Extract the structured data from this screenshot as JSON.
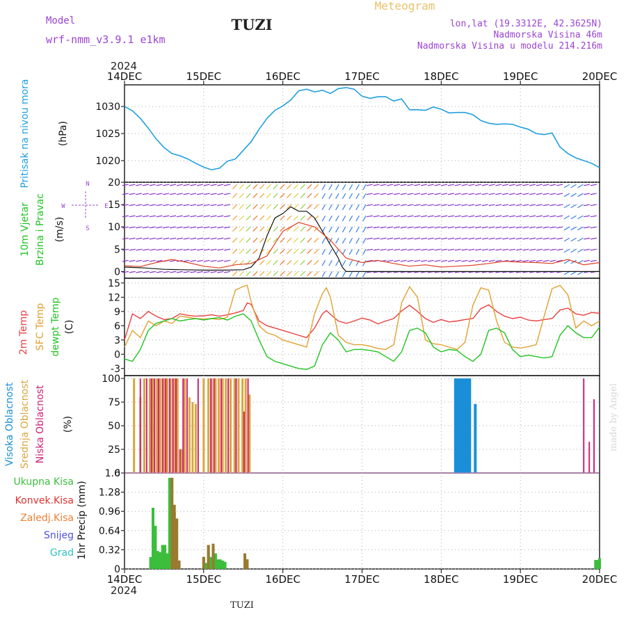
{
  "header": {
    "model_label": "Model",
    "model_name": "wrf-nmm_v3.9.1 e1km",
    "station": "TUZI",
    "product": "Meteogram",
    "lonlat": "lon,lat (19.3312E, 42.3625N)",
    "elevation": "Nadmorska Visina 46m",
    "model_elevation": "Nadmorska Visina u modelu 214.216m"
  },
  "footer": {
    "station": "TUZI",
    "year": "2024",
    "credit": "made by Angel"
  },
  "colors": {
    "pressure": "#1f9fe0",
    "t2m": "#e84040",
    "sfc": "#e0a030",
    "dewpt": "#22c322",
    "high_cloud": "#1a8fd8",
    "mid_cloud": "#d9a640",
    "low_cloud": "#cc2277",
    "total_precip": "#3cbd3c",
    "conv_precip": "#e03030",
    "frz_precip": "#f07f30",
    "snow": "#5050e0",
    "grad": "#30c0c0",
    "wind_purple": "#8833cc",
    "wind_blue": "#3b7fe0"
  },
  "chart_data": [
    {
      "type": "line",
      "id": "pressure",
      "ylabel_main": "Pritisak na nivou mora",
      "ylabel_unit": "(hPa)",
      "xticks": [
        "14DEC",
        "15DEC",
        "16DEC",
        "17DEC",
        "18DEC",
        "19DEC",
        "20DEC"
      ],
      "ylim": [
        1016,
        1034
      ],
      "yticks": [
        1020,
        1025,
        1030
      ],
      "grid": true,
      "series": [
        {
          "x": [
            0,
            0.1,
            0.2,
            0.3,
            0.4,
            0.5,
            0.6,
            0.7,
            0.8,
            0.9,
            1.0,
            1.1,
            1.2,
            1.3,
            1.4,
            1.5,
            1.6,
            1.7,
            1.8,
            1.9,
            2.0,
            2.1,
            2.2,
            2.3,
            2.4,
            2.5,
            2.6,
            2.7,
            2.8,
            2.9,
            3.0,
            3.1,
            3.2,
            3.3,
            3.4,
            3.5,
            3.6,
            3.7,
            3.8,
            3.9,
            4.0,
            4.1,
            4.2,
            4.3,
            4.4,
            4.5,
            4.6,
            4.7,
            4.8,
            4.9,
            5.0,
            5.1,
            5.2,
            5.3,
            5.4,
            5.5,
            5.6,
            5.7,
            5.8,
            5.9,
            6.0
          ],
          "y": [
            1030,
            1029.2,
            1027.8,
            1026,
            1024,
            1022.4,
            1021.3,
            1020.9,
            1020.3,
            1019.5,
            1018.8,
            1018.3,
            1018.6,
            1019.9,
            1020.3,
            1021.9,
            1023.5,
            1025.8,
            1027.8,
            1029.3,
            1030.1,
            1031.2,
            1032.9,
            1033.2,
            1032.7,
            1033,
            1032.4,
            1033.3,
            1033.5,
            1033.2,
            1031.9,
            1031.5,
            1031.8,
            1031.8,
            1031,
            1031.4,
            1029.4,
            1029.4,
            1029.3,
            1029.9,
            1029.5,
            1028.8,
            1028.9,
            1028.9,
            1028.5,
            1027.4,
            1026.9,
            1026.7,
            1026.8,
            1026.7,
            1026.2,
            1025.8,
            1025,
            1024.8,
            1025.1,
            1022.5,
            1021.3,
            1020.5,
            1020,
            1019.5,
            1018.7
          ]
        }
      ]
    },
    {
      "type": "line",
      "id": "wind",
      "ylabel_main": "10m Vjetar",
      "ylabel_sub": "Brzina i Pravac",
      "ylabel_unit": "(m/s)",
      "compass": {
        "w": "W",
        "e": "E",
        "n": "N",
        "s": "S"
      },
      "ylim": [
        -1.5,
        20
      ],
      "yticks": [
        0,
        5,
        10,
        15,
        20
      ],
      "grid": true,
      "series": [
        {
          "name": "speed",
          "x": [
            0,
            0.25,
            0.5,
            0.75,
            1.0,
            1.25,
            1.5,
            1.6,
            1.7,
            1.8,
            1.9,
            2.0,
            2.1,
            2.2,
            2.3,
            2.4,
            2.5,
            2.6,
            2.7,
            2.75,
            2.8,
            3.0,
            3.25,
            3.5,
            3.75,
            4.0,
            4.25,
            4.5,
            4.75,
            5.0,
            5.25,
            5.5,
            5.75,
            6.0
          ],
          "y": [
            1,
            0.8,
            0.5,
            0.4,
            0.3,
            0.3,
            0.4,
            1,
            3,
            8,
            12,
            13,
            14.5,
            13.5,
            13.5,
            12,
            9,
            6,
            3,
            1,
            0,
            0,
            0,
            0,
            0,
            0,
            0,
            0,
            0,
            0,
            0,
            0,
            0,
            0
          ]
        },
        {
          "name": "gust",
          "x": [
            0,
            0.2,
            0.4,
            0.6,
            0.8,
            1.0,
            1.2,
            1.4,
            1.6,
            1.8,
            2.0,
            2.2,
            2.4,
            2.6,
            2.8,
            3.0,
            3.2,
            3.4,
            3.6,
            3.8,
            4.0,
            4.2,
            4.4,
            4.6,
            4.8,
            5.0,
            5.2,
            5.4,
            5.6,
            5.8,
            6.0
          ],
          "y": [
            1.3,
            1.1,
            2,
            2.7,
            2,
            1.2,
            0.8,
            1.5,
            1.8,
            3.5,
            9,
            11,
            10,
            7,
            3,
            2,
            2.5,
            1.8,
            1.2,
            1.5,
            1,
            1.2,
            1.4,
            1.8,
            2.3,
            2.1,
            2,
            1.8,
            2.7,
            1.5,
            2
          ]
        }
      ]
    },
    {
      "type": "line",
      "id": "temperature",
      "ylabel_main": "2m Temp",
      "ylabel_sub": "SFC Temp",
      "ylabel_sub2": "dewpt Temp",
      "ylabel_unit": "(C)",
      "ylim": [
        -4.5,
        16
      ],
      "yticks": [
        -3,
        0,
        3,
        6,
        9,
        12,
        15
      ],
      "grid": true,
      "series": [
        {
          "name": "2m Temp",
          "x": [
            0,
            0.1,
            0.2,
            0.3,
            0.4,
            0.5,
            0.6,
            0.7,
            0.8,
            0.9,
            1.0,
            1.1,
            1.2,
            1.3,
            1.4,
            1.5,
            1.55,
            1.6,
            1.7,
            1.8,
            1.9,
            2.0,
            2.1,
            2.2,
            2.3,
            2.4,
            2.5,
            2.55,
            2.6,
            2.7,
            2.8,
            2.9,
            3.0,
            3.1,
            3.2,
            3.3,
            3.4,
            3.5,
            3.6,
            3.7,
            3.8,
            3.9,
            4.0,
            4.1,
            4.2,
            4.3,
            4.4,
            4.5,
            4.6,
            4.7,
            4.8,
            4.9,
            5.0,
            5.1,
            5.2,
            5.3,
            5.4,
            5.5,
            5.6,
            5.7,
            5.8,
            5.9,
            6.0
          ],
          "y": [
            3,
            8.5,
            7.5,
            9,
            8,
            7.3,
            7.5,
            8.5,
            8.2,
            8,
            8.1,
            8.3,
            8,
            8.3,
            8.7,
            9.2,
            10.8,
            10.5,
            7,
            6,
            5.5,
            5,
            4.5,
            4,
            3.5,
            5.5,
            8.5,
            9.2,
            8.4,
            7,
            6.5,
            7,
            7.6,
            7.2,
            6.4,
            7,
            7.5,
            9.1,
            10.3,
            9,
            7.5,
            6.7,
            7.3,
            6.8,
            7,
            7.3,
            7.5,
            9.6,
            10.4,
            9,
            8,
            7.5,
            7.8,
            7.2,
            7,
            7.3,
            7.5,
            9.3,
            9.7,
            8.5,
            8.2,
            8.8,
            8.6
          ]
        },
        {
          "name": "SFC Temp",
          "x": [
            0,
            0.1,
            0.2,
            0.3,
            0.4,
            0.5,
            0.6,
            0.7,
            0.8,
            0.9,
            1.0,
            1.1,
            1.2,
            1.3,
            1.4,
            1.5,
            1.55,
            1.6,
            1.7,
            1.8,
            1.9,
            2.0,
            2.1,
            2.2,
            2.3,
            2.4,
            2.5,
            2.55,
            2.6,
            2.7,
            2.8,
            2.9,
            3.0,
            3.1,
            3.2,
            3.3,
            3.4,
            3.5,
            3.6,
            3.7,
            3.8,
            3.9,
            4.0,
            4.1,
            4.2,
            4.3,
            4.4,
            4.5,
            4.6,
            4.7,
            4.8,
            4.9,
            5.0,
            5.1,
            5.2,
            5.3,
            5.4,
            5.5,
            5.6,
            5.7,
            5.8,
            5.9,
            6.0
          ],
          "y": [
            1.5,
            5,
            3.5,
            7,
            6,
            7,
            6.5,
            8,
            7.8,
            7.5,
            7.4,
            7.5,
            7.3,
            7.8,
            13.5,
            14.3,
            14.5,
            11,
            6,
            4.5,
            4,
            3,
            2.5,
            2,
            1.5,
            8.5,
            12.8,
            14,
            12,
            4,
            2.5,
            2,
            2,
            1.7,
            1.2,
            1,
            2,
            10.8,
            14.2,
            12,
            3,
            2.2,
            2,
            1.5,
            1,
            2.5,
            10.3,
            14,
            13.5,
            7,
            2.5,
            1.5,
            1.3,
            1.6,
            2,
            8,
            13.8,
            14.5,
            12.5,
            5.5,
            7,
            6,
            7
          ]
        },
        {
          "name": "dewpt Temp",
          "x": [
            0,
            0.1,
            0.2,
            0.3,
            0.4,
            0.5,
            0.6,
            0.7,
            0.8,
            0.9,
            1.0,
            1.1,
            1.2,
            1.3,
            1.4,
            1.5,
            1.6,
            1.7,
            1.8,
            1.9,
            2.0,
            2.1,
            2.2,
            2.3,
            2.4,
            2.5,
            2.6,
            2.7,
            2.8,
            2.9,
            3.0,
            3.1,
            3.2,
            3.3,
            3.4,
            3.5,
            3.6,
            3.7,
            3.8,
            3.9,
            4.0,
            4.1,
            4.2,
            4.3,
            4.4,
            4.5,
            4.6,
            4.7,
            4.8,
            4.9,
            5.0,
            5.1,
            5.2,
            5.3,
            5.4,
            5.5,
            5.6,
            5.7,
            5.8,
            5.9,
            6.0
          ],
          "y": [
            -1,
            -1.5,
            1,
            5,
            6.5,
            7,
            7.5,
            7,
            7.3,
            7.5,
            7.2,
            7.5,
            7.7,
            7.2,
            8,
            8.5,
            7,
            3,
            -0.5,
            -1.5,
            -2,
            -2.5,
            -3,
            -3.2,
            -2.5,
            2,
            4.5,
            3,
            0.5,
            1,
            1,
            0.8,
            0.5,
            -0.5,
            -1.5,
            0.5,
            5,
            5.5,
            4.5,
            1.5,
            0.5,
            1,
            0.8,
            -0.5,
            -1.5,
            0,
            5,
            5.5,
            4.5,
            1,
            -0.5,
            -0.2,
            -0.5,
            -0.8,
            -0.5,
            4,
            6,
            4.5,
            3.5,
            3.5,
            5.7
          ]
        }
      ]
    },
    {
      "type": "bar",
      "id": "clouds",
      "ylabel_main": "Visoka Oblacnost",
      "ylabel_sub": "Srednja Oblacnost",
      "ylabel_sub2": "Niska Oblacnost",
      "ylabel_unit": "(%)",
      "ylim": [
        0,
        103
      ],
      "yticks": [
        0,
        25,
        50,
        75,
        100
      ],
      "grid": true,
      "series": [
        {
          "name": "Srednja Oblacnost",
          "x": [
            0.12,
            0.2,
            0.25,
            0.32,
            0.36,
            0.41,
            0.45,
            0.5,
            0.54,
            0.58,
            0.63,
            0.67,
            0.72,
            0.76,
            0.82,
            0.86,
            0.9,
            1.0,
            1.06,
            1.1,
            1.15,
            1.19,
            1.24,
            1.28,
            1.34,
            1.39,
            1.44,
            1.49,
            1.53,
            1.58
          ],
          "y": [
            100,
            80,
            100,
            100,
            100,
            100,
            100,
            100,
            100,
            100,
            100,
            100,
            25,
            100,
            80,
            75,
            73,
            100,
            100,
            100,
            100,
            100,
            100,
            100,
            100,
            100,
            100,
            100,
            100,
            83
          ]
        },
        {
          "name": "Niska Oblacnost",
          "x": [
            0.2,
            0.28,
            0.34,
            0.38,
            0.43,
            0.48,
            0.52,
            0.57,
            0.61,
            0.65,
            0.7,
            0.74,
            0.79,
            0.93,
            1.09,
            1.13,
            1.22,
            1.31,
            1.41,
            1.51,
            1.56,
            5.8,
            5.87,
            5.93
          ],
          "y": [
            100,
            100,
            100,
            100,
            100,
            100,
            100,
            100,
            100,
            100,
            25,
            100,
            100,
            100,
            100,
            100,
            100,
            100,
            100,
            65,
            100,
            100,
            33,
            78
          ]
        },
        {
          "name": "Visoka Oblacnost",
          "x": [
            4.18,
            4.21,
            4.24,
            4.27,
            4.3,
            4.33,
            4.36,
            4.43
          ],
          "y": [
            100,
            100,
            100,
            100,
            100,
            100,
            100,
            73
          ]
        }
      ]
    },
    {
      "type": "bar",
      "id": "precip",
      "legend": [
        "Ukupna Kisa",
        "Konvek.Kisa",
        "Zaledj.Kisa",
        "Snijeg",
        "Grad"
      ],
      "ylabel_main": "1hr Precip (mm)",
      "ylim": [
        0,
        1.6
      ],
      "yticks": [
        0,
        0.32,
        0.64,
        0.96,
        1.28,
        1.6
      ],
      "grid": true,
      "series": [
        {
          "name": "Ukupna Kisa",
          "x": [
            0.33,
            0.36,
            0.39,
            0.42,
            0.45,
            0.48,
            0.51,
            0.54,
            0.57,
            0.6,
            0.63,
            0.66,
            0.69,
            1.0,
            1.03,
            1.06,
            1.09,
            1.12,
            1.15,
            1.18,
            1.21,
            1.24,
            1.27,
            1.3,
            1.52,
            1.55,
            5.95,
            5.98,
            6.0
          ],
          "y": [
            0.2,
            1.02,
            0.72,
            0.3,
            0.28,
            0.4,
            0.4,
            0.26,
            1.52,
            1.07,
            0.95,
            0.84,
            0.14,
            0.2,
            0.1,
            0.4,
            0.2,
            0.42,
            0.26,
            0.16,
            0.16,
            0.14,
            0.12,
            0,
            0.26,
            0.16,
            0.15,
            0.15,
            0.18
          ]
        },
        {
          "name": "Zaledj.Kisa",
          "x": [
            0.6,
            0.63,
            0.66,
            0.69,
            1.0,
            1.06,
            1.12,
            1.52,
            1.55
          ],
          "y": [
            1.52,
            1.07,
            0.84,
            0.14,
            0.2,
            0.4,
            0.42,
            0.26,
            0.16
          ]
        }
      ]
    }
  ],
  "xaxis": {
    "ticks": [
      "14DEC",
      "15DEC",
      "16DEC",
      "17DEC",
      "18DEC",
      "19DEC",
      "20DEC"
    ],
    "year": "2024"
  }
}
